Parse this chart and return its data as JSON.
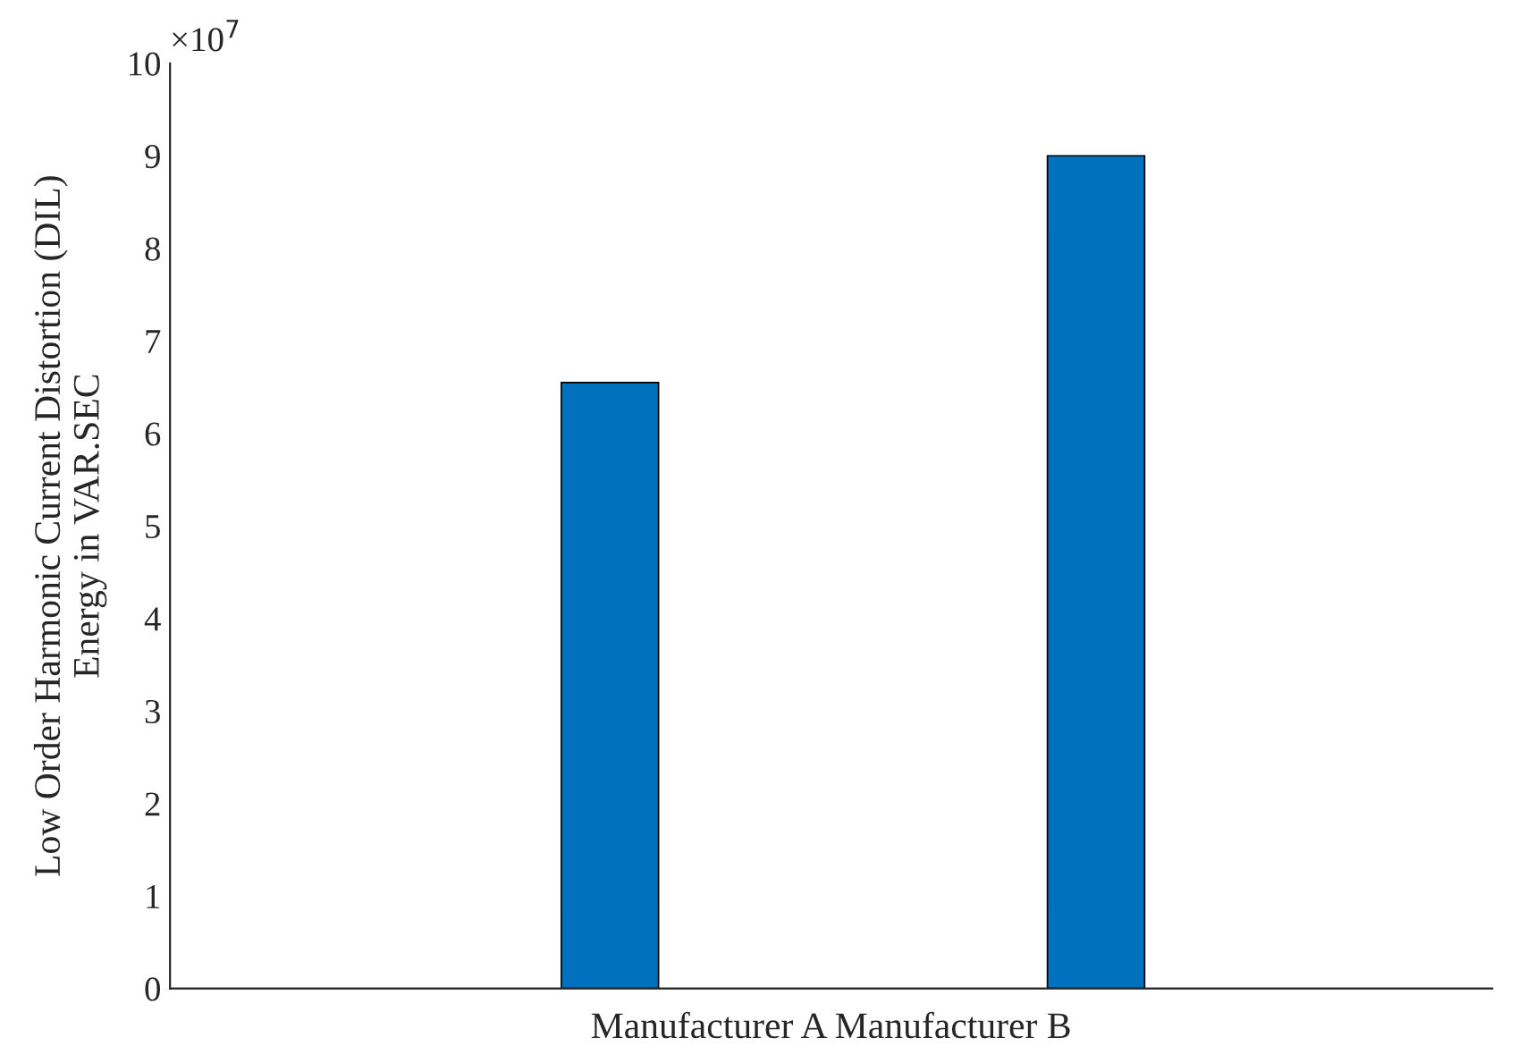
{
  "chart_data": {
    "type": "bar",
    "categories": [
      null,
      null
    ],
    "values": [
      6.55,
      9.0
    ],
    "color": "#0072bd",
    "xlabel": "Manufacturer A Manufacturer B",
    "ylabel": "Low Order Harmonic Current Distortion (DIL)\nEnergy in VAR.SEC",
    "annotations": [
      "×10$^{7}$"
    ],
    "ylim": [
      0,
      10
    ],
    "yticks": [
      0,
      1,
      2,
      3,
      4,
      5,
      6,
      7,
      8,
      9,
      10
    ],
    "grid": false
  }
}
